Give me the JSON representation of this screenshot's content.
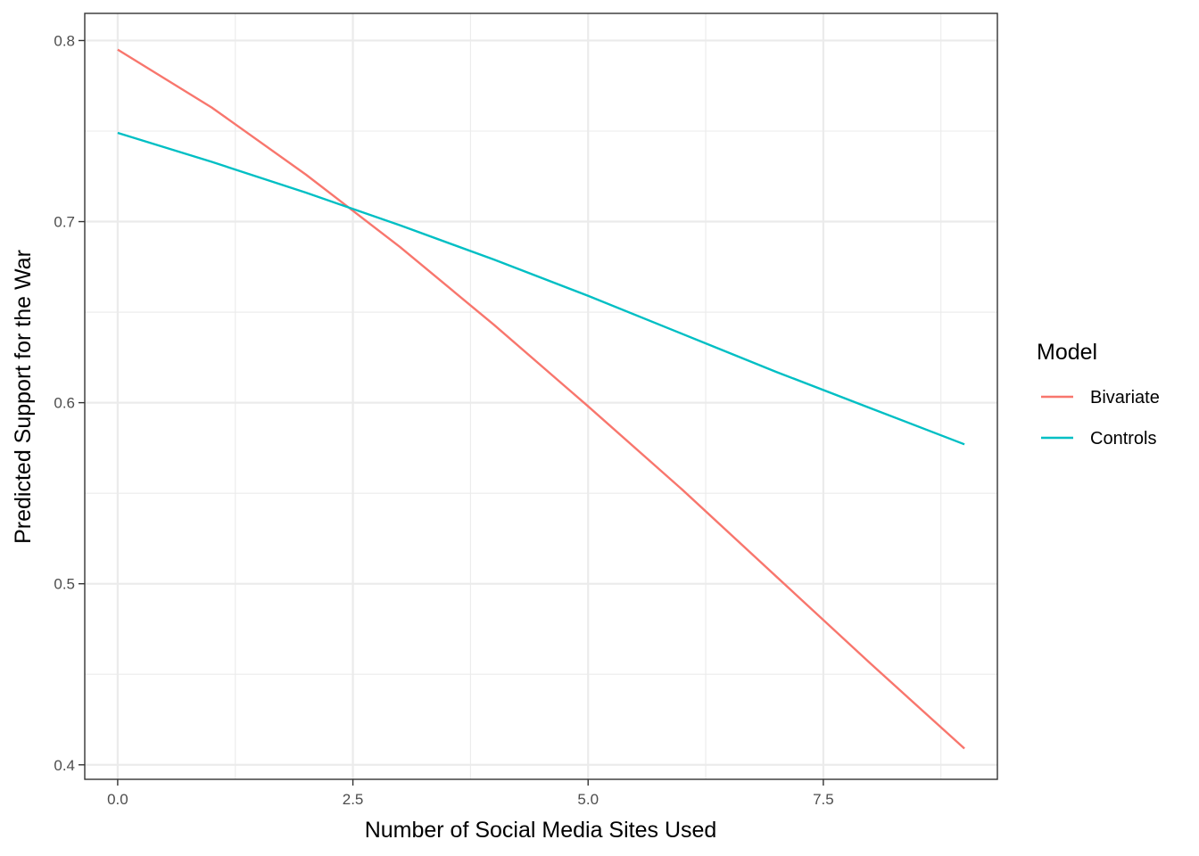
{
  "chart_data": {
    "type": "line",
    "title": "",
    "xlabel": "Number of Social Media Sites Used",
    "ylabel": "Predicted Support for the War",
    "xlim": [
      -0.35,
      9.35
    ],
    "ylim": [
      0.392,
      0.815
    ],
    "x_ticks": [
      0,
      2.5,
      5,
      7.5
    ],
    "x_tick_labels": [
      "0.0",
      "2.5",
      "5.0",
      "7.5"
    ],
    "y_ticks": [
      0.4,
      0.5,
      0.6,
      0.7,
      0.8
    ],
    "y_tick_labels": [
      "0.4",
      "0.5",
      "0.6",
      "0.7",
      "0.8"
    ],
    "grid": true,
    "legend": {
      "title": "Model",
      "position": "right"
    },
    "x": [
      0,
      1,
      2,
      3,
      4,
      5,
      6,
      7,
      8,
      9
    ],
    "series": [
      {
        "name": "Bivariate",
        "color": "#F8766D",
        "values": [
          0.795,
          0.763,
          0.726,
          0.686,
          0.643,
          0.598,
          0.552,
          0.504,
          0.456,
          0.409
        ]
      },
      {
        "name": "Controls",
        "color": "#00BFC4",
        "values": [
          0.749,
          0.733,
          0.716,
          0.698,
          0.679,
          0.659,
          0.638,
          0.617,
          0.597,
          0.577
        ]
      }
    ]
  }
}
